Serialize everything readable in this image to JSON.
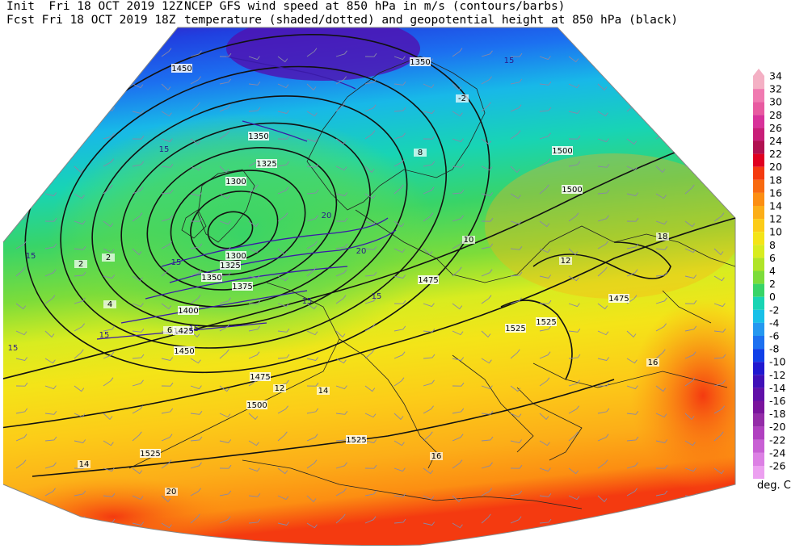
{
  "header": {
    "init_line": "Init  Fri 18 OCT 2019 12Z",
    "fcst_line": "Fcst Fri 18 OCT 2019 18Z",
    "title_line": "NCEP GFS wind speed at 850 hPa in m/s (contours/barbs)",
    "subtitle_line": "temperature (shaded/dotted) and geopotential height at 850 hPa (black)"
  },
  "colorbar": {
    "unit": "deg. C",
    "levels": [
      "34",
      "32",
      "30",
      "28",
      "26",
      "24",
      "22",
      "20",
      "18",
      "16",
      "14",
      "12",
      "10",
      "8",
      "6",
      "4",
      "2",
      "0",
      "-2",
      "-4",
      "-6",
      "-8",
      "-10",
      "-12",
      "-14",
      "-16",
      "-18",
      "-20",
      "-22",
      "-24",
      "-26"
    ],
    "colors": [
      "#f4b0c4",
      "#f07ab0",
      "#e85aa0",
      "#d8329a",
      "#c81e78",
      "#b01050",
      "#e00020",
      "#f43a10",
      "#f86a10",
      "#fc8e12",
      "#fcae18",
      "#fccc18",
      "#f4e418",
      "#d8ec20",
      "#b0e428",
      "#7cdc3a",
      "#38d468",
      "#18d4b4",
      "#18c0e8",
      "#2498f0",
      "#1c70f0",
      "#1040e8",
      "#2018d0",
      "#4010b8",
      "#6010a8",
      "#7a149c",
      "#942ca8",
      "#b040c0",
      "#c860d4",
      "#dc80e4",
      "#eca0f0"
    ]
  },
  "map_labels": {
    "height_contours": [
      "1350",
      "1450",
      "1350",
      "1325",
      "1300",
      "1300",
      "1325",
      "1350",
      "1375",
      "1400",
      "1425",
      "1450",
      "1475",
      "1500",
      "1525",
      "1475",
      "1500",
      "1525",
      "1525",
      "1475",
      "1500",
      "1525"
    ],
    "wind_contours": [
      "15",
      "15",
      "15",
      "15",
      "15",
      "20",
      "20",
      "15",
      "15",
      "15",
      "15"
    ],
    "temp_labels": [
      "2",
      "4",
      "6",
      "8",
      "10",
      "12",
      "14",
      "16",
      "18",
      "20",
      "-2",
      "2",
      "12",
      "14",
      "16"
    ]
  },
  "fields": {
    "low_center": [
      -14,
      56
    ],
    "low_depth": 1300
  }
}
